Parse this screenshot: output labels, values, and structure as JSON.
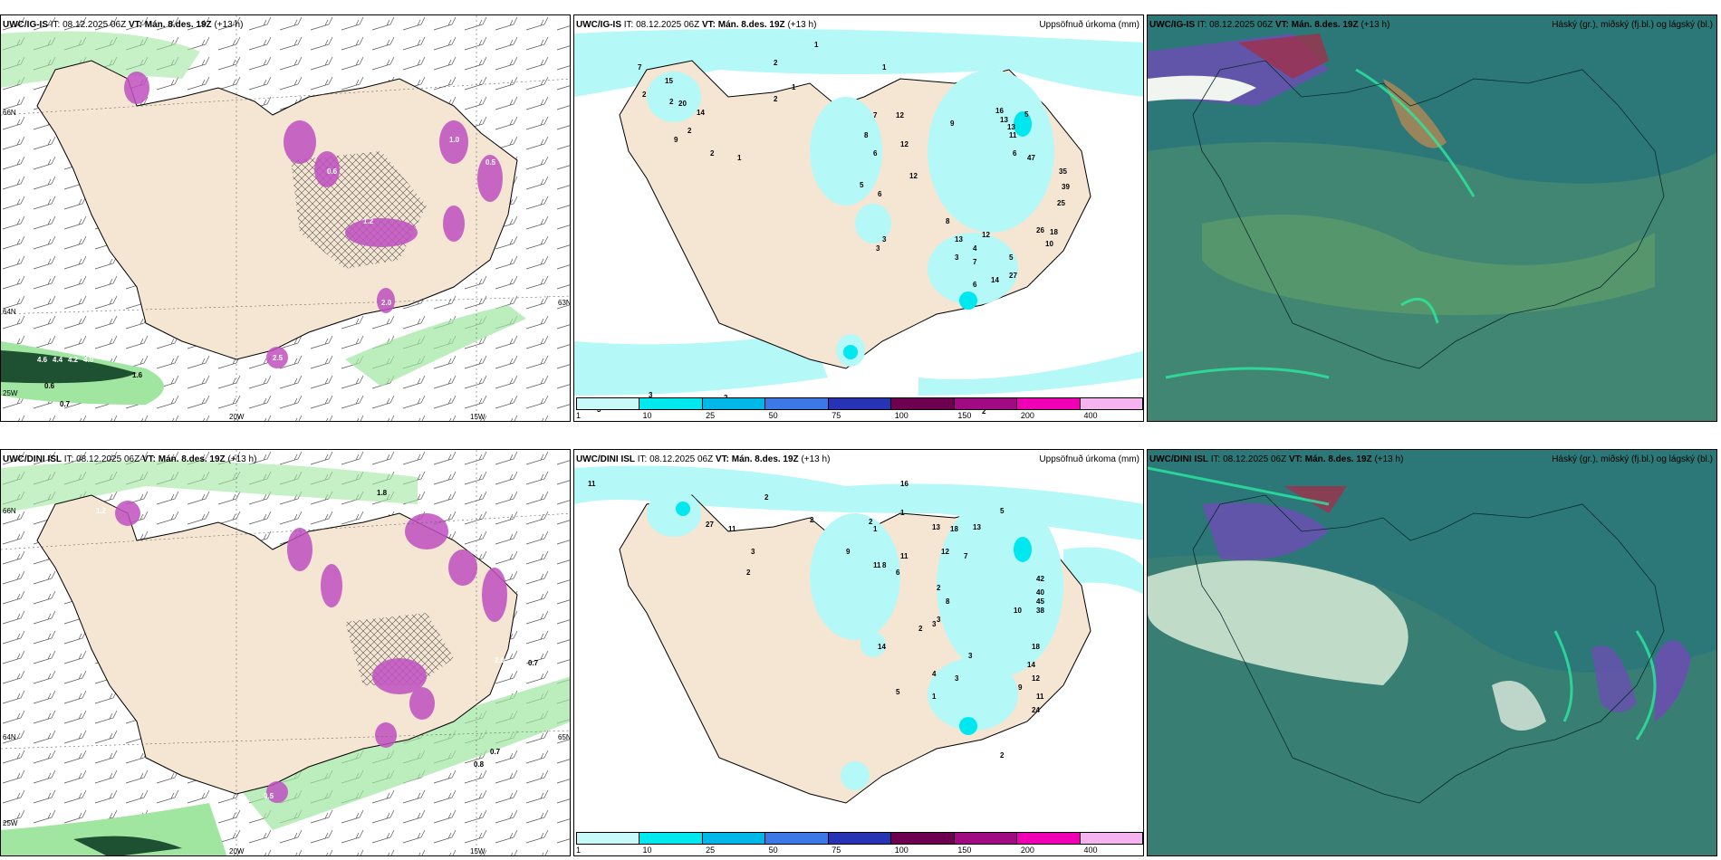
{
  "rows": [
    {
      "model": "UWC/IG-IS",
      "it_label": "IT:",
      "it_value": "08.12.2025 06Z",
      "vt_label": "VT:",
      "vt_value": "Mán. 8.des. 19Z",
      "lead": "(+13 h)",
      "precip_numbers": [
        "7",
        "2",
        "2",
        "1",
        "2",
        "1",
        "1",
        "2",
        "2",
        "15",
        "20",
        "14",
        "9",
        "2",
        "1",
        "12",
        "7",
        "8",
        "12",
        "6",
        "12",
        "9",
        "5",
        "6",
        "3",
        "3",
        "8",
        "13",
        "12",
        "6",
        "4",
        "5",
        "16",
        "13",
        "13",
        "11",
        "5",
        "6",
        "47",
        "35",
        "39",
        "25",
        "26",
        "10",
        "18",
        "27",
        "14",
        "3",
        "7",
        "3",
        "2",
        "3",
        "2"
      ],
      "wind_labels": [
        "66N",
        "64N",
        "25W",
        "20W",
        "15W",
        "63N"
      ],
      "wind_numbers": [
        "4.6",
        "4.4",
        "4.2",
        "4.0",
        "1.6",
        "0.6",
        "0.7",
        "1.2",
        "2.5",
        "0.6",
        "0.5",
        "1.0",
        "2.0"
      ]
    },
    {
      "model": "UWC/DINI ISL",
      "it_label": "IT:",
      "it_value": "08.12.2025 06Z",
      "vt_label": "VT:",
      "vt_value": "Mán. 8.des. 19Z",
      "lead": "(+13 h)",
      "precip_numbers": [
        "11",
        "2",
        "2",
        "1",
        "2",
        "1",
        "16",
        "27",
        "11",
        "3",
        "2",
        "13",
        "18",
        "13",
        "5",
        "12",
        "9",
        "11",
        "8",
        "11",
        "6",
        "2",
        "7",
        "42",
        "40",
        "45",
        "38",
        "10",
        "18",
        "14",
        "9",
        "12",
        "11",
        "24",
        "8",
        "3",
        "14",
        "5",
        "4",
        "3",
        "1",
        "3",
        "3",
        "2",
        "2"
      ],
      "wind_labels": [
        "66N",
        "64N",
        "25W",
        "20W",
        "15W",
        "65N"
      ],
      "wind_numbers": [
        "1.8",
        "0.7",
        "0.7",
        "0.8",
        "1.2",
        "2.0",
        "0.5"
      ]
    }
  ],
  "precip_title": "Uppsöfnuð úrkoma (mm)",
  "cloud_title": "Háský (gr.), miðský (fj.bl.) og lágský (bl.)",
  "colorbar": {
    "ticks": [
      "1",
      "10",
      "25",
      "50",
      "75",
      "100",
      "150",
      "200",
      "400"
    ],
    "colors": [
      "#c8fafa",
      "#00e8ef",
      "#00b8e8",
      "#3c78e6",
      "#2832b4",
      "#6e0050",
      "#a00a82",
      "#f000b4",
      "#f5b4f0"
    ]
  },
  "colors": {
    "land": "#f5e6d3",
    "sea": "#ffffff",
    "precip_light": "#b4f8f8",
    "wind_green": "#a0e6a0",
    "dark_green": "#1e5032",
    "cloud_teal": "#2c7878",
    "cloud_green": "#5a9a6a",
    "purple": "#c050c0"
  }
}
